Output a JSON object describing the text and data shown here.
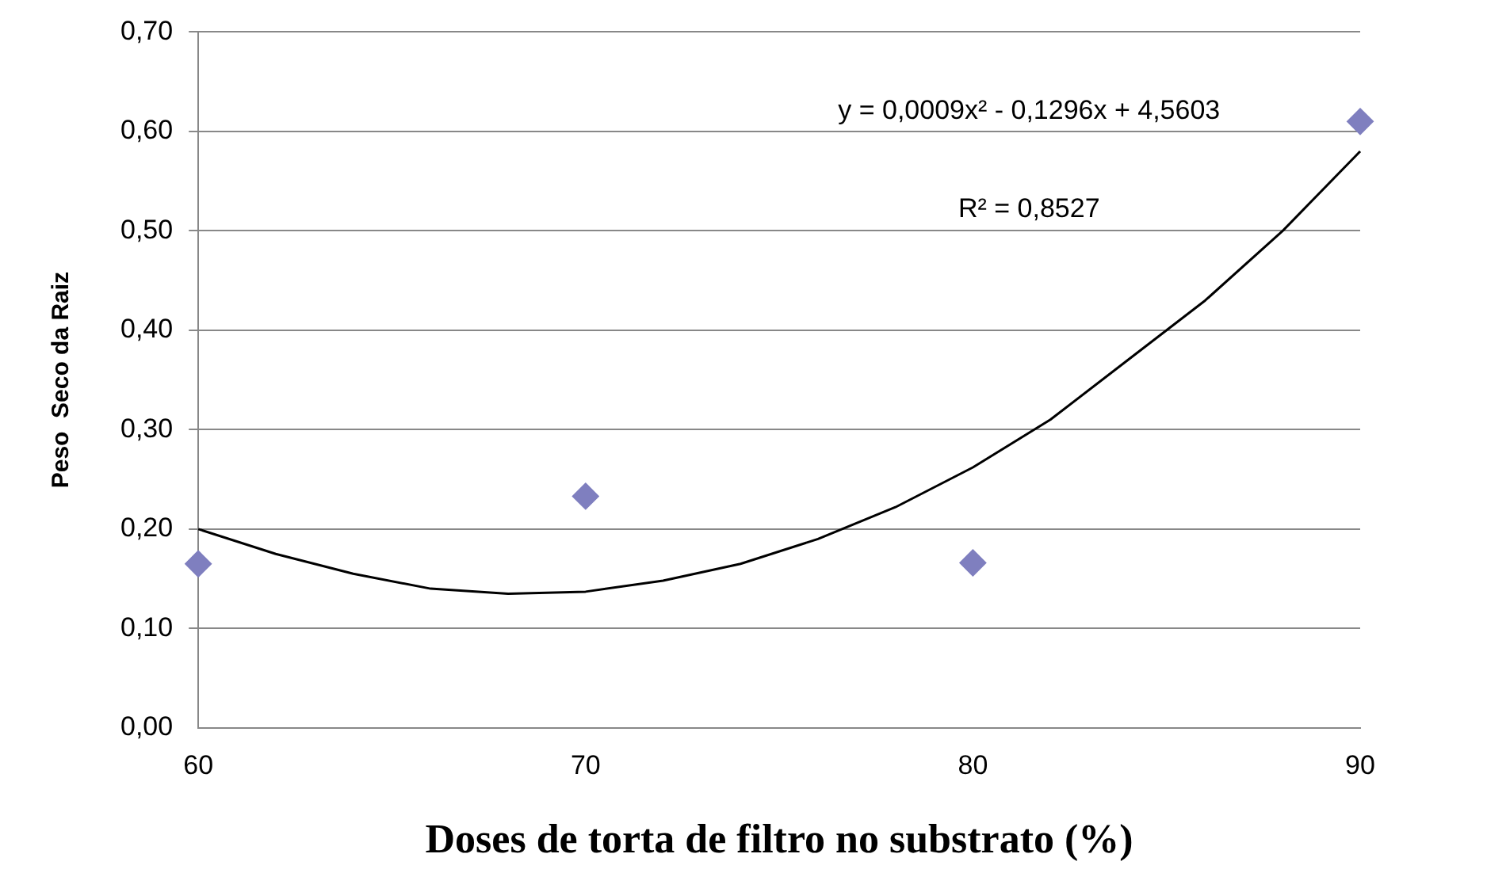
{
  "chart_data": {
    "type": "scatter",
    "xlabel": "Doses de torta de filtro no substrato (%)",
    "ylabel": "Peso  Seco da Raiz",
    "xlim": [
      60,
      90
    ],
    "xticks": [
      60,
      70,
      80,
      90
    ],
    "ylim": [
      0,
      0.7
    ],
    "yticks": [
      {
        "value": 0,
        "label": "0,00"
      },
      {
        "value": 0.1,
        "label": "0,10"
      },
      {
        "value": 0.2,
        "label": "0,20"
      },
      {
        "value": 0.3,
        "label": "0,30"
      },
      {
        "value": 0.4,
        "label": "0,40"
      },
      {
        "value": 0.5,
        "label": "0,50"
      },
      {
        "value": 0.6,
        "label": "0,60"
      },
      {
        "value": 0.7,
        "label": "0,70"
      }
    ],
    "grid": "y",
    "legend": false,
    "annotations": [
      "y = 0,0009x² - 0,1296x + 4,5603",
      "R² = 0,8527"
    ],
    "series": [
      {
        "color": "#7f7fbf",
        "marker": "diamond",
        "x": [
          60,
          70,
          80,
          90
        ],
        "values": [
          0.165,
          0.233,
          0.166,
          0.61
        ]
      },
      {
        "type": "line",
        "color": "#000000",
        "marker": "none",
        "line_style": "solid",
        "x": [
          60,
          62,
          64,
          66,
          68,
          70,
          72,
          74,
          76,
          78,
          80,
          82,
          84,
          86,
          88,
          90
        ],
        "values": [
          0.2,
          0.175,
          0.155,
          0.14,
          0.135,
          0.137,
          0.148,
          0.165,
          0.19,
          0.222,
          0.262,
          0.31,
          0.37,
          0.43,
          0.5,
          0.58
        ]
      }
    ]
  }
}
